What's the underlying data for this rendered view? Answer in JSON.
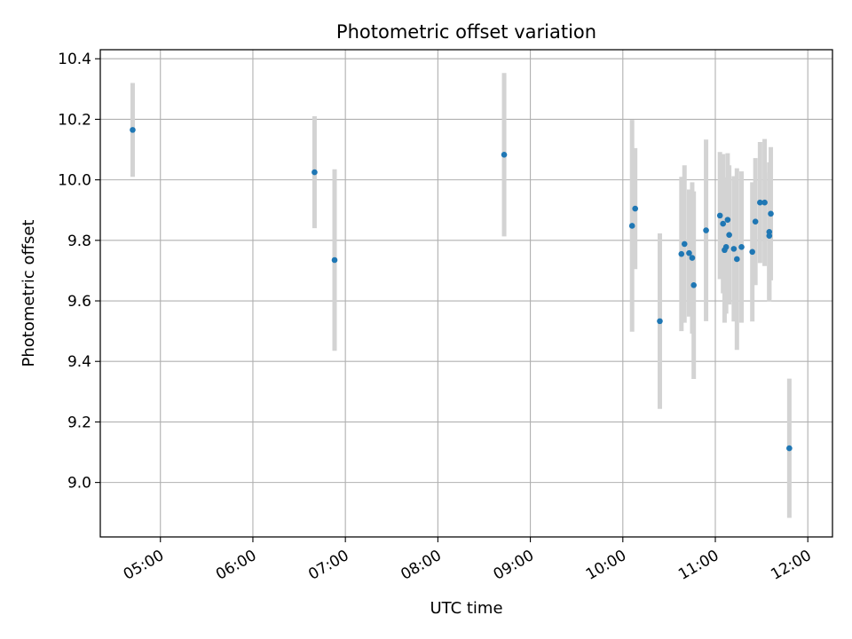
{
  "chart_data": {
    "type": "scatter",
    "title": "Photometric offset variation",
    "xlabel": "UTC time",
    "ylabel": "Photometric offset",
    "x_ticks": [
      "05:00",
      "06:00",
      "07:00",
      "08:00",
      "09:00",
      "10:00",
      "11:00",
      "12:00"
    ],
    "y_ticks": [
      "9.0",
      "9.2",
      "9.4",
      "9.6",
      "9.8",
      "10.0",
      "10.2",
      "10.4"
    ],
    "xlim": [
      "04:21",
      "12:16"
    ],
    "ylim": [
      8.82,
      10.43
    ],
    "grid": true,
    "colors": {
      "marker": "#1f77b4",
      "errorbar": "#d3d3d3",
      "grid": "#b0b0b0"
    },
    "points": [
      {
        "x": "04:42",
        "y": 10.165,
        "err": 0.155
      },
      {
        "x": "06:40",
        "y": 10.025,
        "err": 0.185
      },
      {
        "x": "06:53",
        "y": 9.735,
        "err": 0.3
      },
      {
        "x": "08:43",
        "y": 10.083,
        "err": 0.27
      },
      {
        "x": "10:06",
        "y": 9.848,
        "err": 0.35
      },
      {
        "x": "10:08",
        "y": 9.905,
        "err": 0.2
      },
      {
        "x": "10:24",
        "y": 9.533,
        "err": 0.29
      },
      {
        "x": "10:38",
        "y": 9.755,
        "err": 0.255
      },
      {
        "x": "10:40",
        "y": 9.788,
        "err": 0.26
      },
      {
        "x": "10:43",
        "y": 9.758,
        "err": 0.21
      },
      {
        "x": "10:45",
        "y": 9.742,
        "err": 0.25
      },
      {
        "x": "10:46",
        "y": 9.652,
        "err": 0.31
      },
      {
        "x": "10:54",
        "y": 9.833,
        "err": 0.3
      },
      {
        "x": "11:03",
        "y": 9.882,
        "err": 0.21
      },
      {
        "x": "11:05",
        "y": 9.855,
        "err": 0.23
      },
      {
        "x": "11:06",
        "y": 9.768,
        "err": 0.24
      },
      {
        "x": "11:07",
        "y": 9.778,
        "err": 0.22
      },
      {
        "x": "11:08",
        "y": 9.868,
        "err": 0.22
      },
      {
        "x": "11:09",
        "y": 9.818,
        "err": 0.23
      },
      {
        "x": "11:12",
        "y": 9.772,
        "err": 0.24
      },
      {
        "x": "11:14",
        "y": 9.738,
        "err": 0.3
      },
      {
        "x": "11:17",
        "y": 9.778,
        "err": 0.25
      },
      {
        "x": "11:24",
        "y": 9.762,
        "err": 0.23
      },
      {
        "x": "11:26",
        "y": 9.862,
        "err": 0.21
      },
      {
        "x": "11:29",
        "y": 9.925,
        "err": 0.2
      },
      {
        "x": "11:32",
        "y": 9.925,
        "err": 0.21
      },
      {
        "x": "11:35",
        "y": 9.828,
        "err": 0.23
      },
      {
        "x": "11:35",
        "y": 9.815,
        "err": 0.21
      },
      {
        "x": "11:36",
        "y": 9.888,
        "err": 0.22
      },
      {
        "x": "11:48",
        "y": 9.113,
        "err": 0.23
      }
    ]
  }
}
